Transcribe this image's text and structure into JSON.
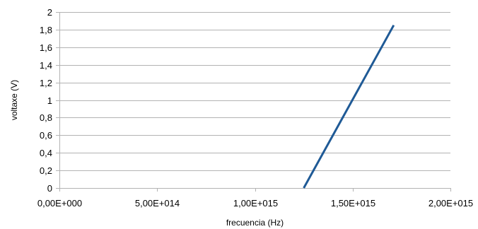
{
  "chart_data": {
    "type": "line",
    "xlabel": "frecuencia (Hz)",
    "ylabel": "voltaxe (V)",
    "xlim": [
      0,
      2000000000000000
    ],
    "ylim": [
      0,
      2
    ],
    "x_ticks": [
      0,
      500000000000000,
      1000000000000000,
      1500000000000000,
      2000000000000000
    ],
    "x_tick_labels": [
      "0,00E+000",
      "5,00E+014",
      "1,00E+015",
      "1,50E+015",
      "2,00E+015"
    ],
    "y_ticks": [
      0,
      0.2,
      0.4,
      0.6,
      0.8,
      1,
      1.2,
      1.4,
      1.6,
      1.8,
      2
    ],
    "y_tick_labels": [
      "0",
      "0,2",
      "0,4",
      "0,6",
      "0,8",
      "1",
      "1,2",
      "1,4",
      "1,6",
      "1,8",
      "2"
    ],
    "grid": true,
    "legend": "none",
    "series": [
      {
        "color": "#1f5a96",
        "x": [
          1250000000000000,
          1710000000000000
        ],
        "y": [
          0,
          1.85
        ]
      }
    ]
  }
}
